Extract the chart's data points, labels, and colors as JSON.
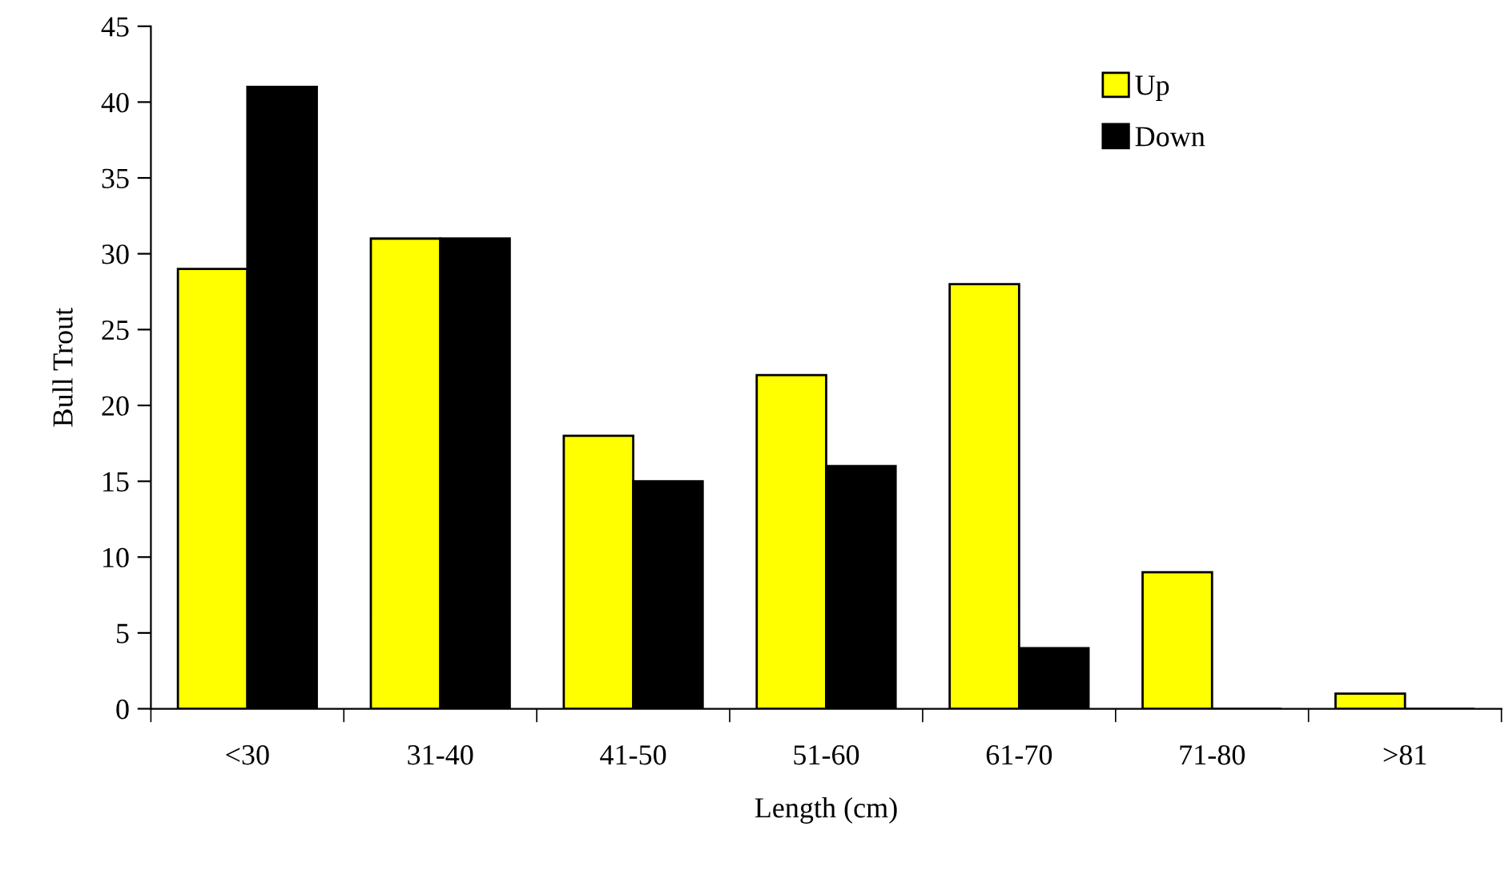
{
  "chart_data": {
    "type": "bar",
    "xlabel": "Length (cm)",
    "ylabel": "Bull Trout",
    "categories": [
      "<30",
      "31-40",
      "41-50",
      "51-60",
      "61-70",
      "71-80",
      ">81"
    ],
    "series": [
      {
        "name": "Up",
        "color": "#ffff00",
        "values": [
          29,
          31,
          18,
          22,
          28,
          9,
          1
        ]
      },
      {
        "name": "Down",
        "color": "#000000",
        "values": [
          41,
          31,
          15,
          16,
          4,
          0,
          0
        ]
      }
    ],
    "ylim": [
      0,
      45
    ],
    "yticks": [
      0,
      5,
      10,
      15,
      20,
      25,
      30,
      35,
      40,
      45
    ],
    "grid": false,
    "legend": "top right"
  }
}
